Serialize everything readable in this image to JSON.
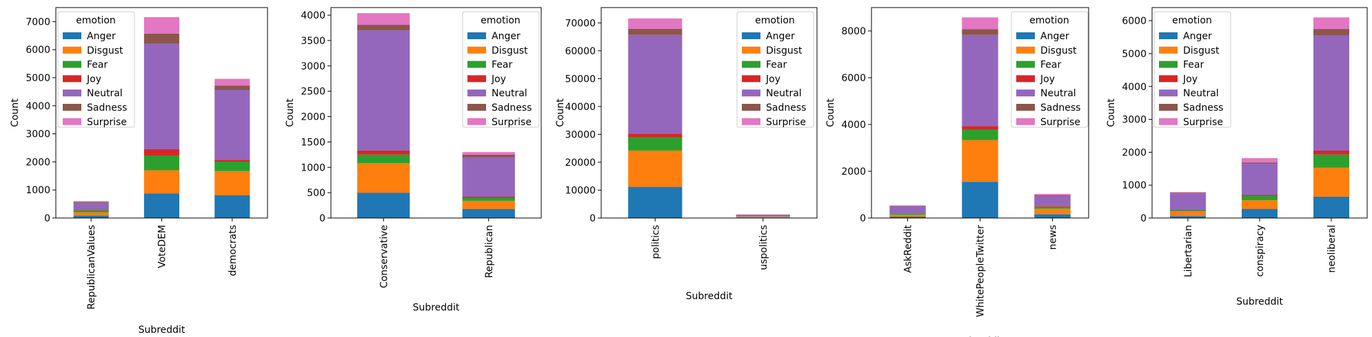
{
  "figure": {
    "legend_title": "emotion",
    "emotions": [
      "Anger",
      "Disgust",
      "Fear",
      "Joy",
      "Neutral",
      "Sadness",
      "Surprise"
    ],
    "colors": [
      "#1f77b4",
      "#ff7f0e",
      "#2ca02c",
      "#d62728",
      "#9467bd",
      "#8c564b",
      "#e377c2"
    ]
  },
  "chart_data": [
    {
      "type": "bar",
      "stacked": true,
      "title": "",
      "xlabel": "Subreddit",
      "ylabel": "Count",
      "ylim": [
        0,
        7500
      ],
      "yticks": [
        0,
        1000,
        2000,
        3000,
        4000,
        5000,
        6000,
        7000
      ],
      "legend_title": "emotion",
      "legend_position": "top-left",
      "categories": [
        "RepublicanValues",
        "VoteDEM",
        "democrats"
      ],
      "series": [
        {
          "name": "Anger",
          "values": [
            90,
            870,
            810
          ]
        },
        {
          "name": "Disgust",
          "values": [
            110,
            830,
            860
          ]
        },
        {
          "name": "Fear",
          "values": [
            70,
            530,
            340
          ]
        },
        {
          "name": "Joy",
          "values": [
            15,
            230,
            60
          ]
        },
        {
          "name": "Neutral",
          "values": [
            260,
            3750,
            2490
          ]
        },
        {
          "name": "Sadness",
          "values": [
            30,
            360,
            160
          ]
        },
        {
          "name": "Surprise",
          "values": [
            25,
            590,
            240
          ]
        }
      ]
    },
    {
      "type": "bar",
      "stacked": true,
      "title": "",
      "xlabel": "Subreddit",
      "ylabel": "Count",
      "ylim": [
        0,
        4150
      ],
      "yticks": [
        0,
        500,
        1000,
        1500,
        2000,
        2500,
        3000,
        3500,
        4000
      ],
      "legend_title": "emotion",
      "legend_position": "top-right",
      "categories": [
        "Conservative",
        "Republican"
      ],
      "series": [
        {
          "name": "Anger",
          "values": [
            500,
            180
          ]
        },
        {
          "name": "Disgust",
          "values": [
            580,
            160
          ]
        },
        {
          "name": "Fear",
          "values": [
            170,
            60
          ]
        },
        {
          "name": "Joy",
          "values": [
            80,
            20
          ]
        },
        {
          "name": "Neutral",
          "values": [
            2370,
            780
          ]
        },
        {
          "name": "Sadness",
          "values": [
            110,
            50
          ]
        },
        {
          "name": "Surprise",
          "values": [
            230,
            50
          ]
        }
      ]
    },
    {
      "type": "bar",
      "stacked": true,
      "title": "",
      "xlabel": "Subreddit",
      "ylabel": "Count",
      "ylim": [
        0,
        75500
      ],
      "yticks": [
        0,
        10000,
        20000,
        30000,
        40000,
        50000,
        60000,
        70000
      ],
      "legend_title": "emotion",
      "legend_position": "top-right",
      "categories": [
        "politics",
        "uspolitics"
      ],
      "series": [
        {
          "name": "Anger",
          "values": [
            11200,
            200
          ]
        },
        {
          "name": "Disgust",
          "values": [
            13000,
            250
          ]
        },
        {
          "name": "Fear",
          "values": [
            4800,
            100
          ]
        },
        {
          "name": "Joy",
          "values": [
            1300,
            30
          ]
        },
        {
          "name": "Neutral",
          "values": [
            35400,
            600
          ]
        },
        {
          "name": "Sadness",
          "values": [
            2200,
            50
          ]
        },
        {
          "name": "Surprise",
          "values": [
            3700,
            70
          ]
        }
      ]
    },
    {
      "type": "bar",
      "stacked": true,
      "title": "",
      "xlabel": "Subreddit",
      "ylabel": "Count",
      "ylim": [
        0,
        9000
      ],
      "yticks": [
        0,
        2000,
        4000,
        6000,
        8000
      ],
      "legend_title": "emotion",
      "legend_position": "top-right",
      "categories": [
        "AskReddit",
        "WhitePeopleTwitter",
        "news"
      ],
      "series": [
        {
          "name": "Anger",
          "values": [
            60,
            1550,
            160
          ]
        },
        {
          "name": "Disgust",
          "values": [
            80,
            1780,
            240
          ]
        },
        {
          "name": "Fear",
          "values": [
            40,
            450,
            80
          ]
        },
        {
          "name": "Joy",
          "values": [
            20,
            150,
            30
          ]
        },
        {
          "name": "Neutral",
          "values": [
            300,
            3900,
            420
          ]
        },
        {
          "name": "Sadness",
          "values": [
            20,
            250,
            40
          ]
        },
        {
          "name": "Surprise",
          "values": [
            20,
            500,
            60
          ]
        }
      ]
    },
    {
      "type": "bar",
      "stacked": true,
      "title": "",
      "xlabel": "Subreddit",
      "ylabel": "Count",
      "ylim": [
        0,
        6400
      ],
      "yticks": [
        0,
        1000,
        2000,
        3000,
        4000,
        5000,
        6000
      ],
      "legend_title": "emotion",
      "legend_position": "top-left",
      "categories": [
        "Libertarian",
        "conspiracy",
        "neoliberal"
      ],
      "series": [
        {
          "name": "Anger",
          "values": [
            60,
            280,
            650
          ]
        },
        {
          "name": "Disgust",
          "values": [
            150,
            260,
            880
          ]
        },
        {
          "name": "Fear",
          "values": [
            20,
            130,
            400
          ]
        },
        {
          "name": "Joy",
          "values": [
            10,
            30,
            120
          ]
        },
        {
          "name": "Neutral",
          "values": [
            510,
            950,
            3500
          ]
        },
        {
          "name": "Sadness",
          "values": [
            20,
            40,
            200
          ]
        },
        {
          "name": "Surprise",
          "values": [
            20,
            130,
            350
          ]
        }
      ]
    }
  ]
}
